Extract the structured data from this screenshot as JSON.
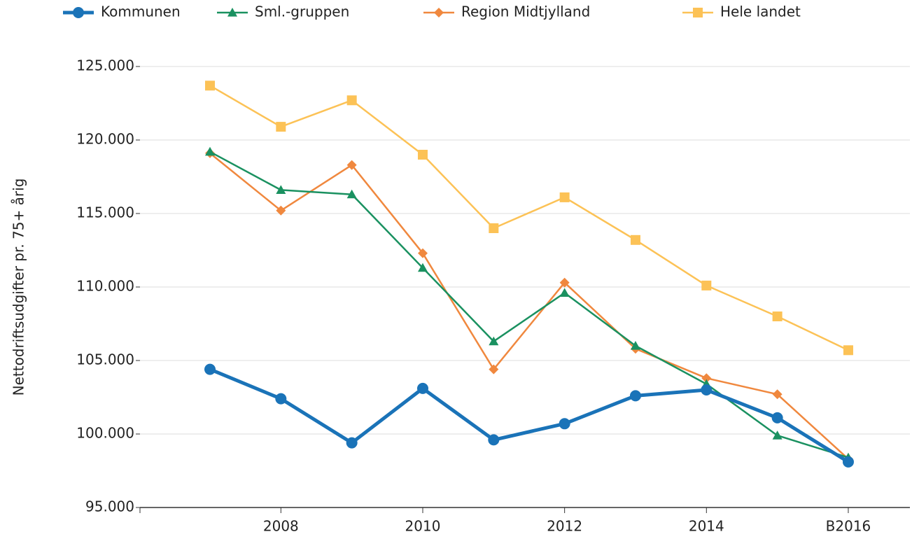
{
  "chart_data": {
    "type": "line",
    "ylabel": "Nettodriftsudgifter pr. 75+ årig",
    "categories": [
      null,
      "2008",
      null,
      "2010",
      null,
      "2012",
      null,
      "2014",
      null,
      "B2016"
    ],
    "series": [
      {
        "name": "Kommunen",
        "color": "#1a73b8",
        "marker": "circle",
        "values": [
          104400,
          102400,
          99400,
          103100,
          99600,
          100700,
          102600,
          103000,
          101100,
          98100
        ]
      },
      {
        "name": "Sml.-gruppen",
        "color": "#1a9160",
        "marker": "triangle",
        "values": [
          119200,
          116600,
          116300,
          111300,
          106300,
          109600,
          106000,
          103400,
          99900,
          98400
        ]
      },
      {
        "name": "Region Midtjylland",
        "color": "#f0883e",
        "marker": "diamond",
        "values": [
          119100,
          115200,
          118300,
          112300,
          104400,
          110300,
          105800,
          103800,
          102700,
          98300
        ]
      },
      {
        "name": "Hele landet",
        "color": "#fcc256",
        "marker": "square",
        "values": [
          123700,
          120900,
          122700,
          119000,
          114000,
          116100,
          113200,
          110100,
          108000,
          105700
        ]
      }
    ],
    "ylim": [
      95000,
      125000
    ],
    "yticks": [
      {
        "value": 95000,
        "label": "95.000"
      },
      {
        "value": 100000,
        "label": "100.000"
      },
      {
        "value": 105000,
        "label": "105.000"
      },
      {
        "value": 110000,
        "label": "110.000"
      },
      {
        "value": 115000,
        "label": "115.000"
      },
      {
        "value": 120000,
        "label": "120.000"
      },
      {
        "value": 125000,
        "label": "125.000"
      }
    ],
    "grid": true
  }
}
